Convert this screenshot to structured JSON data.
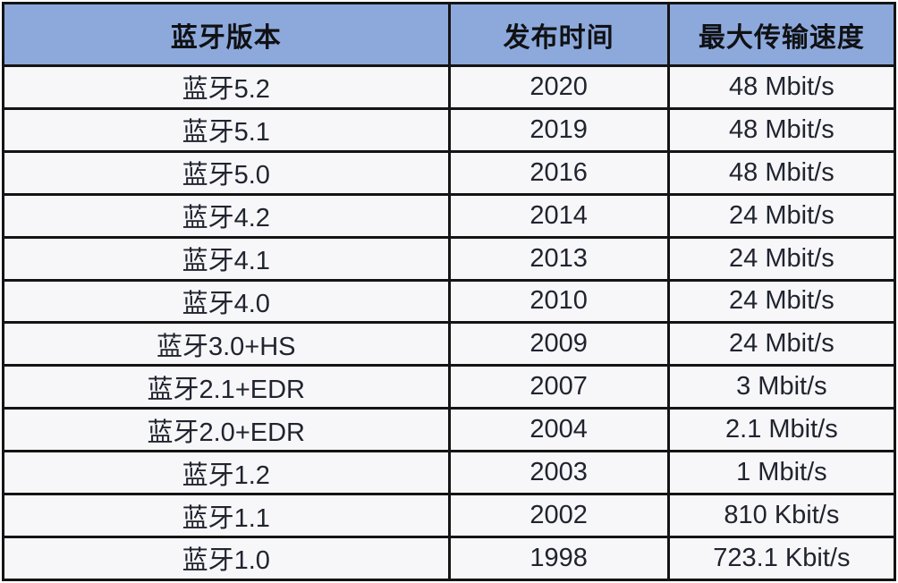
{
  "chart_data": {
    "type": "table",
    "columns": [
      "蓝牙版本",
      "发布时间",
      "最大传输速度"
    ],
    "rows": [
      [
        "蓝牙5.2",
        "2020",
        "48 Mbit/s"
      ],
      [
        "蓝牙5.1",
        "2019",
        "48 Mbit/s"
      ],
      [
        "蓝牙5.0",
        "2016",
        "48 Mbit/s"
      ],
      [
        "蓝牙4.2",
        "2014",
        "24 Mbit/s"
      ],
      [
        "蓝牙4.1",
        "2013",
        "24 Mbit/s"
      ],
      [
        "蓝牙4.0",
        "2010",
        "24 Mbit/s"
      ],
      [
        "蓝牙3.0+HS",
        "2009",
        "24 Mbit/s"
      ],
      [
        "蓝牙2.1+EDR",
        "2007",
        "3 Mbit/s"
      ],
      [
        "蓝牙2.0+EDR",
        "2004",
        "2.1 Mbit/s"
      ],
      [
        "蓝牙1.2",
        "2003",
        "1 Mbit/s"
      ],
      [
        "蓝牙1.1",
        "2002",
        "810 Kbit/s"
      ],
      [
        "蓝牙1.0",
        "1998",
        "723.1 Kbit/s"
      ]
    ],
    "title": "",
    "layout_hints": {
      "header_position": "top",
      "grid": "on",
      "text_align": "center"
    }
  },
  "colors": {
    "header_bg": "#8DA9DC",
    "header_text": "#101114",
    "row_bg": "#F7F7F9",
    "cell_text": "#21242F",
    "border": "#141414",
    "page_bg": "#FFFFFF"
  }
}
